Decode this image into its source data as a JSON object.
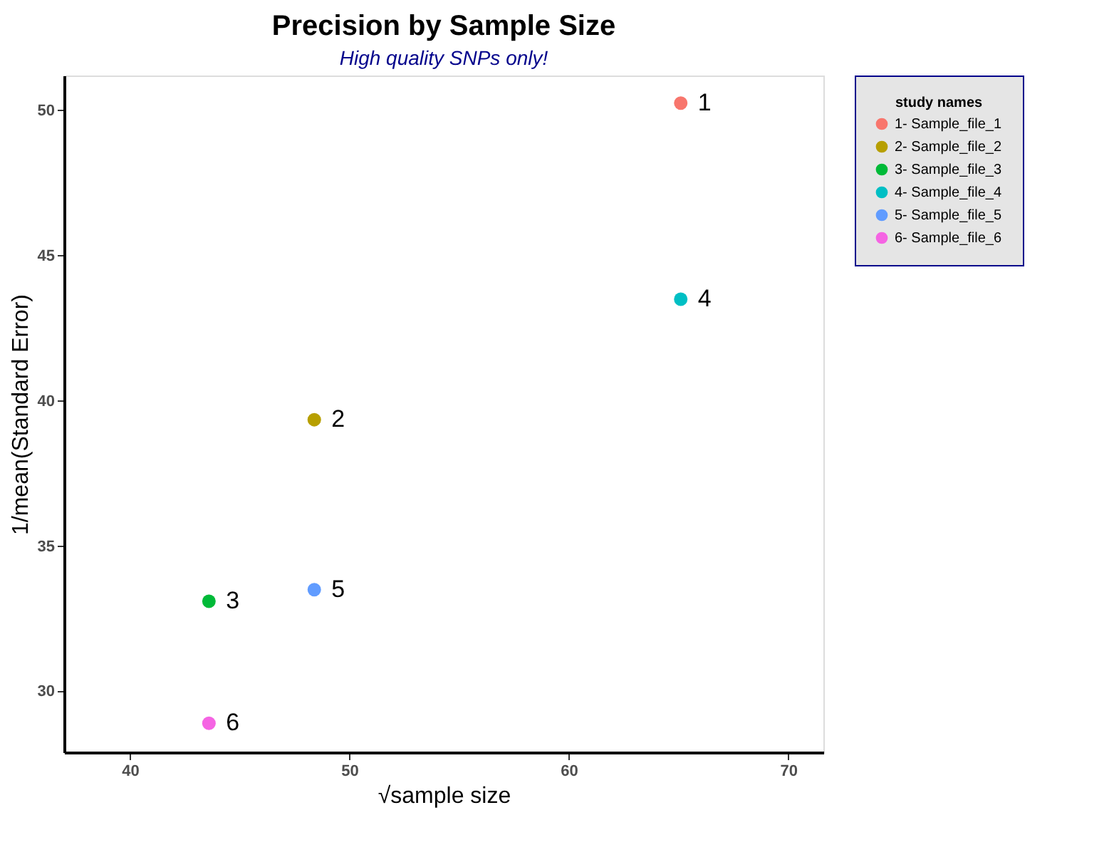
{
  "chart_data": {
    "type": "scatter",
    "title": "Precision by Sample Size",
    "subtitle": "High quality SNPs only!",
    "xlabel": "√sample size",
    "ylabel": "1/mean(Standard Error)",
    "legend_title": "study names",
    "series": [
      {
        "name": "1- Sample_file_1",
        "color": "#f8766d",
        "x": [
          65.1
        ],
        "values": [
          50.25
        ]
      },
      {
        "name": "2- Sample_file_2",
        "color": "#b79f00",
        "x": [
          48.4
        ],
        "values": [
          39.35
        ]
      },
      {
        "name": "3- Sample_file_3",
        "color": "#00ba38",
        "x": [
          43.6
        ],
        "values": [
          33.1
        ]
      },
      {
        "name": "4- Sample_file_4",
        "color": "#00bfc4",
        "x": [
          65.1
        ],
        "values": [
          43.5
        ]
      },
      {
        "name": "5- Sample_file_5",
        "color": "#619cff",
        "x": [
          48.4
        ],
        "values": [
          33.5
        ]
      },
      {
        "name": "6- Sample_file_6",
        "color": "#f564e3",
        "x": [
          43.6
        ],
        "values": [
          28.9
        ]
      }
    ],
    "annotations": [
      {
        "text": "1",
        "x": 65.1,
        "y": 50.25
      },
      {
        "text": "2",
        "x": 48.4,
        "y": 39.35
      },
      {
        "text": "3",
        "x": 43.6,
        "y": 33.1
      },
      {
        "text": "4",
        "x": 65.1,
        "y": 43.5
      },
      {
        "text": "5",
        "x": 48.4,
        "y": 33.5
      },
      {
        "text": "6",
        "x": 43.6,
        "y": 28.9
      }
    ],
    "xlim": [
      37.0,
      71.6
    ],
    "ylim": [
      27.9,
      51.2
    ],
    "xticks": [
      40,
      50,
      60,
      70
    ],
    "yticks": [
      30,
      35,
      40,
      45,
      50
    ],
    "grid": false,
    "legend": "right",
    "marker": "circle"
  }
}
